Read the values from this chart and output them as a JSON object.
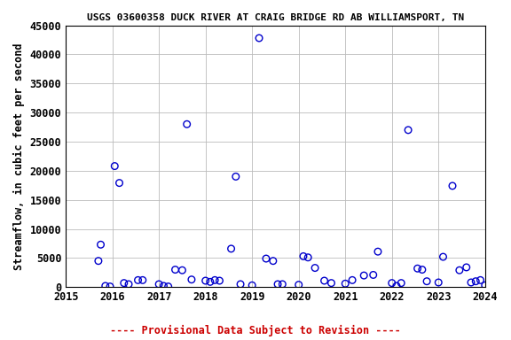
{
  "title": "USGS 03600358 DUCK RIVER AT CRAIG BRIDGE RD AB WILLIAMSPORT, TN",
  "ylabel": "Streamflow, in cubic feet per second",
  "footer": "---- Provisional Data Subject to Revision ----",
  "footer_color": "#cc0000",
  "point_color": "#0000cc",
  "background_color": "#ffffff",
  "grid_color": "#bbbbbb",
  "xlim": [
    2015,
    2024
  ],
  "ylim": [
    0,
    45000
  ],
  "yticks": [
    0,
    5000,
    10000,
    15000,
    20000,
    25000,
    30000,
    35000,
    40000,
    45000
  ],
  "xticks": [
    2015,
    2016,
    2017,
    2018,
    2019,
    2020,
    2021,
    2022,
    2023,
    2024
  ],
  "scatter_x": [
    2015.7,
    2015.75,
    2015.85,
    2015.95,
    2016.05,
    2016.15,
    2016.25,
    2016.35,
    2016.55,
    2016.65,
    2017.0,
    2017.1,
    2017.2,
    2017.35,
    2017.5,
    2017.6,
    2017.7,
    2018.0,
    2018.1,
    2018.2,
    2018.3,
    2018.55,
    2018.65,
    2018.75,
    2019.0,
    2019.15,
    2019.3,
    2019.45,
    2019.55,
    2019.65,
    2020.0,
    2020.1,
    2020.2,
    2020.35,
    2020.55,
    2020.7,
    2021.0,
    2021.15,
    2021.4,
    2021.6,
    2021.7,
    2022.0,
    2022.1,
    2022.2,
    2022.35,
    2022.55,
    2022.65,
    2022.75,
    2023.0,
    2023.1,
    2023.3,
    2023.45,
    2023.6,
    2023.7,
    2023.8,
    2023.9,
    2024.0
  ],
  "scatter_y": [
    4500,
    7300,
    200,
    100,
    20800,
    17900,
    700,
    500,
    1200,
    1200,
    500,
    200,
    100,
    3000,
    2900,
    28000,
    1300,
    1100,
    900,
    1200,
    1100,
    6600,
    19000,
    500,
    300,
    42800,
    4900,
    4500,
    500,
    500,
    400,
    5300,
    5100,
    3300,
    1100,
    700,
    600,
    1200,
    2000,
    2100,
    6100,
    700,
    200,
    700,
    27000,
    3200,
    3000,
    1000,
    800,
    5200,
    17400,
    2900,
    3400,
    800,
    1000,
    1200,
    300
  ],
  "marker_size": 30,
  "title_fontsize": 8,
  "label_fontsize": 8.5,
  "tick_fontsize": 8.5,
  "footer_fontsize": 8.5
}
